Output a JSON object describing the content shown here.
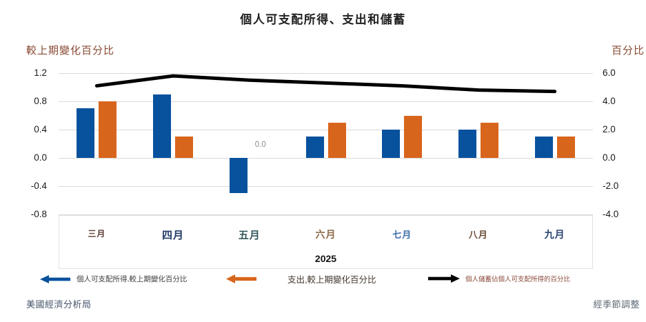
{
  "legend": [
    {
      "label": "個人可支配所得,較上期變化百分比",
      "color": "#07519d",
      "direction": "left"
    },
    {
      "label": "支出,較上期變化百分比",
      "color": "#d8651c",
      "direction": "left"
    },
    {
      "label": "個人儲蓄佔個人可支配所得的百分比",
      "color": "#000000",
      "direction": "right"
    }
  ],
  "footer": {
    "left": "美國經濟分析局",
    "right": "經季節調整"
  },
  "chart_data": {
    "type": "combo",
    "title": "個人可支配所得、支出和儲蓄",
    "x_year": "2025",
    "categories": [
      "三月",
      "四月",
      "五月",
      "六月",
      "七月",
      "八月",
      "九月"
    ],
    "category_colors": [
      "#5d4037",
      "#1f3864",
      "#33595c",
      "#8c6a4a",
      "#3b6ca8",
      "#6b4a35",
      "#2a4373"
    ],
    "series": [
      {
        "name": "個人可支配所得,較上期變化百分比",
        "type": "bar",
        "axis": "left",
        "color": "#07519d",
        "values": [
          0.7,
          0.9,
          -0.5,
          0.3,
          0.4,
          0.4,
          0.3
        ]
      },
      {
        "name": "支出,較上期變化百分比",
        "type": "bar",
        "axis": "left",
        "color": "#d8651c",
        "values": [
          0.8,
          0.3,
          0.0,
          0.5,
          0.6,
          0.5,
          0.3
        ]
      },
      {
        "name": "個人儲蓄佔個人可支配所得的百分比",
        "type": "line",
        "axis": "right",
        "color": "#000000",
        "values": [
          5.1,
          5.8,
          5.5,
          5.3,
          5.1,
          4.8,
          4.7
        ]
      }
    ],
    "left_axis": {
      "label": "較上期變化百分比",
      "min": -0.8,
      "max": 1.2,
      "tick_step": 0.4,
      "ticks": [
        "1.2",
        "0.8",
        "0.4",
        "0.0",
        "-0.4",
        "-0.8"
      ]
    },
    "right_axis": {
      "label": "百分比",
      "min": -4.0,
      "max": 6.0,
      "tick_step": 2.0,
      "ticks": [
        "6.0",
        "4.0",
        "2.0",
        "0.0",
        "-2.0",
        "-4.0"
      ]
    },
    "annotations": [
      {
        "text": "0.0",
        "category": "五月",
        "series": "支出,較上期變化百分比",
        "color": "#898989"
      }
    ],
    "grid": true,
    "legend_position": "bottom"
  }
}
